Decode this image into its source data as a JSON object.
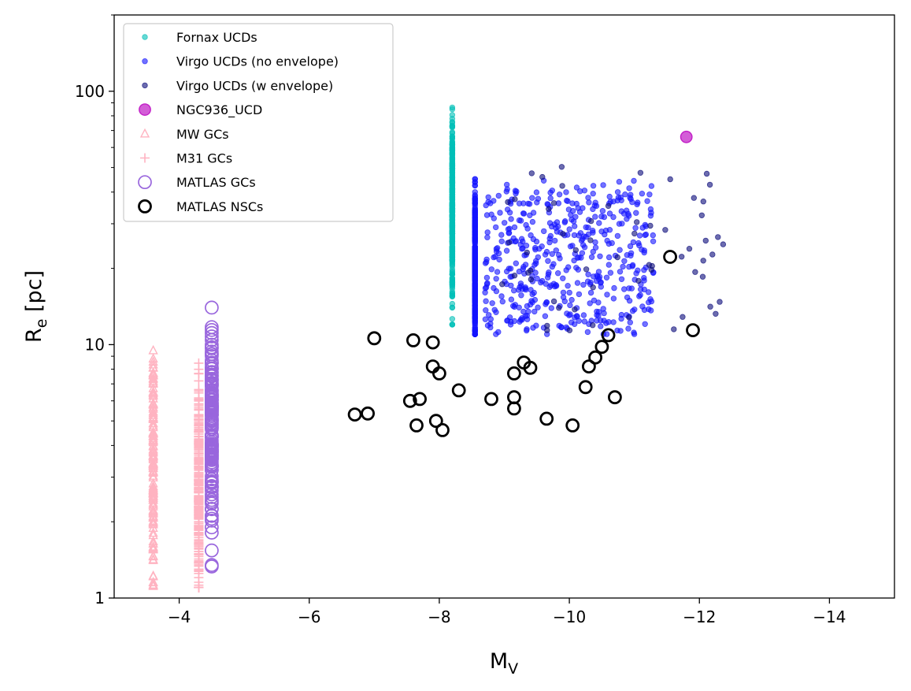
{
  "chart_data": {
    "type": "scatter",
    "title": "",
    "xlabel": "M",
    "xlabel_sub": "V",
    "ylabel": "R",
    "ylabel_sub": "e",
    "ylabel_unit": " [pc]",
    "x_scale": "linear",
    "y_scale": "log",
    "xlim": [
      -3,
      -15
    ],
    "ylim": [
      1,
      200
    ],
    "x_ticks": [
      -4,
      -6,
      -8,
      -10,
      -12,
      -14
    ],
    "x_tick_labels": [
      "−4",
      "−6",
      "−8",
      "−10",
      "−12",
      "−14"
    ],
    "y_ticks": [
      1,
      10,
      100
    ],
    "y_tick_labels": [
      "1",
      "10",
      "100"
    ],
    "legend_position": "upper-left",
    "legend": [
      {
        "label": "Fornax UCDs",
        "marker": "dot",
        "color": "#00bfb8"
      },
      {
        "label": "Virgo UCDs (no envelope)",
        "marker": "dot",
        "color": "#1414ff"
      },
      {
        "label": "Virgo UCDs (w envelope)",
        "marker": "dot",
        "color": "#0a0a7a"
      },
      {
        "label": "NGC936_UCD",
        "marker": "big-dot",
        "color": "#c21fc7"
      },
      {
        "label": "MW GCs",
        "marker": "triangle",
        "color": "#ffb3c1"
      },
      {
        "label": "M31 GCs",
        "marker": "plus",
        "color": "#ffb3c1"
      },
      {
        "label": "MATLAS GCs",
        "marker": "open-circle",
        "color": "#9966dd"
      },
      {
        "label": "MATLAS NSCs",
        "marker": "open-circle-bold",
        "color": "#000000"
      }
    ],
    "series": [
      {
        "name": "NGC936_UCD",
        "points": [
          [
            -11.8,
            66
          ]
        ]
      },
      {
        "name": "MATLAS NSCs",
        "points": [
          [
            -7.0,
            10.6
          ],
          [
            -7.6,
            10.4
          ],
          [
            -7.9,
            10.2
          ],
          [
            -7.9,
            8.2
          ],
          [
            -8.0,
            7.7
          ],
          [
            -9.3,
            8.5
          ],
          [
            -9.4,
            8.1
          ],
          [
            -9.15,
            7.7
          ],
          [
            -10.6,
            10.9
          ],
          [
            -10.5,
            9.8
          ],
          [
            -10.4,
            8.9
          ],
          [
            -10.3,
            8.2
          ],
          [
            -11.55,
            22.2
          ],
          [
            -11.9,
            11.4
          ],
          [
            -8.3,
            6.6
          ],
          [
            -8.8,
            6.1
          ],
          [
            -9.15,
            6.2
          ],
          [
            -9.15,
            5.6
          ],
          [
            -10.25,
            6.8
          ],
          [
            -10.7,
            6.2
          ],
          [
            -9.65,
            5.1
          ],
          [
            -10.05,
            4.8
          ],
          [
            -7.55,
            6.0
          ],
          [
            -7.7,
            6.1
          ],
          [
            -7.95,
            5.0
          ],
          [
            -7.65,
            4.8
          ],
          [
            -8.05,
            4.6
          ],
          [
            -6.7,
            5.3
          ],
          [
            -6.9,
            5.35
          ]
        ]
      }
    ]
  }
}
